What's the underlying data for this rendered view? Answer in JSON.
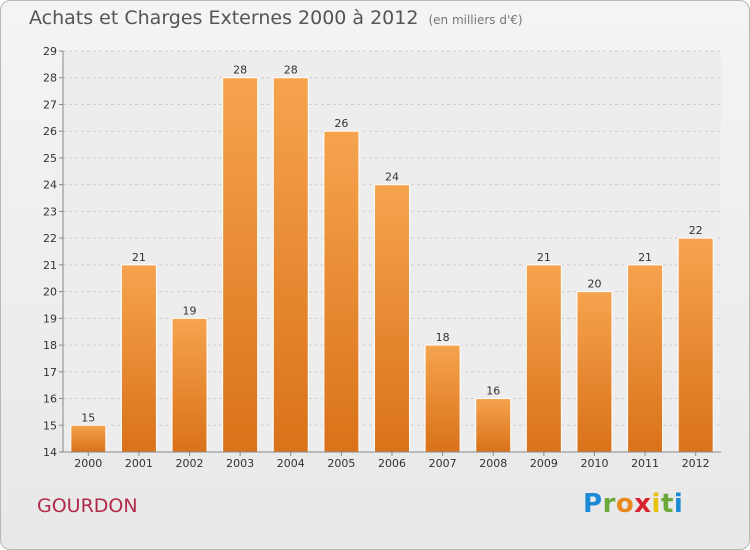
{
  "header": {
    "title": "Achats et Charges Externes 2000 à 2012",
    "subtitle": "(en milliers d'€)"
  },
  "commune": "GOURDON",
  "logo": {
    "letters": [
      "P",
      "r",
      "o",
      "x",
      "i",
      "t",
      "i"
    ],
    "colors": [
      "#1c8ad6",
      "#6aa93a",
      "#e8881f",
      "#d9242f",
      "#e8c20a",
      "#6aa93a",
      "#1c8ad6"
    ]
  },
  "colors": {
    "bar_light": "#f6a34e",
    "bar_dark": "#d97219",
    "grid": "#cfcfcf",
    "plot_bg": "#ededed"
  },
  "chart_data": {
    "type": "bar",
    "title": "Achats et Charges Externes 2000 à 2012",
    "subtitle": "(en milliers d'€)",
    "categories": [
      "2000",
      "2001",
      "2002",
      "2003",
      "2004",
      "2005",
      "2006",
      "2007",
      "2008",
      "2009",
      "2010",
      "2011",
      "2012"
    ],
    "values": [
      15,
      21,
      19,
      28,
      28,
      26,
      24,
      18,
      16,
      21,
      20,
      21,
      22
    ],
    "ylim": [
      14,
      29
    ],
    "yticks": [
      14,
      15,
      16,
      17,
      18,
      19,
      20,
      21,
      22,
      23,
      24,
      25,
      26,
      27,
      28,
      29
    ],
    "grid": true,
    "xlabel": "",
    "ylabel": ""
  }
}
